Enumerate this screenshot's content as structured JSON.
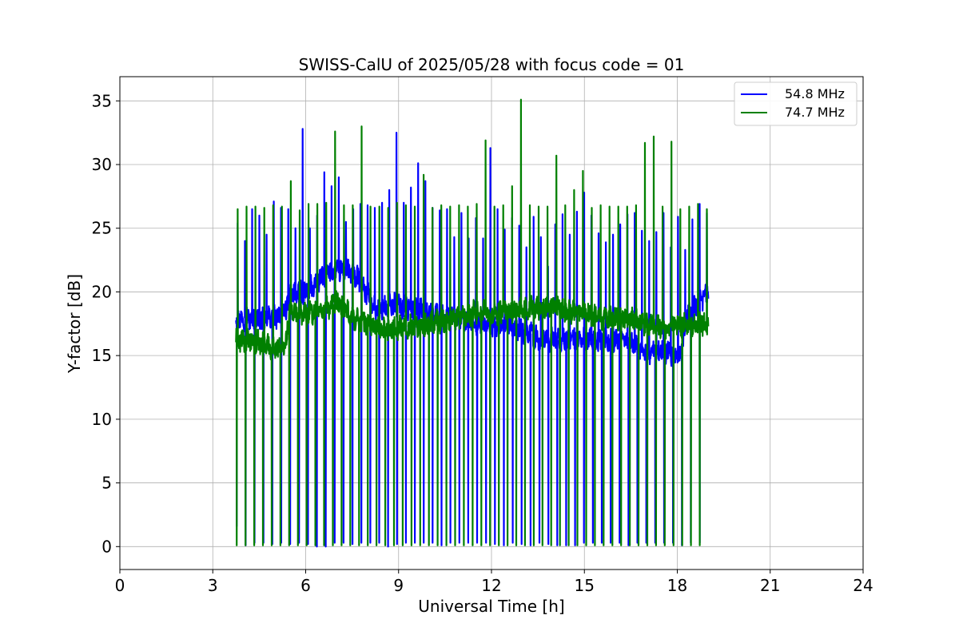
{
  "chart_data": {
    "type": "line",
    "title": "SWISS-CalU of 2025/05/28 with focus code = 01",
    "xlabel": "Universal Time [h]",
    "ylabel": "Y-factor [dB]",
    "xlim": [
      0,
      24
    ],
    "ylim": [
      -1.8,
      36.9
    ],
    "xticks": [
      0,
      3,
      6,
      9,
      12,
      15,
      18,
      21,
      24
    ],
    "xtick_labels": [
      "0",
      "3",
      "6",
      "9",
      "12",
      "15",
      "18",
      "21",
      "24"
    ],
    "yticks": [
      0,
      5,
      10,
      15,
      20,
      25,
      30,
      35
    ],
    "ytick_labels": [
      "0",
      "5",
      "10",
      "15",
      "20",
      "25",
      "30",
      "35"
    ],
    "grid": true,
    "legend_position": "top-right",
    "series": [
      {
        "name": "54.8 MHz",
        "color": "#0000ff",
        "baseline": [
          [
            3.75,
            18.0
          ],
          [
            4.5,
            17.8
          ],
          [
            5.3,
            18.2
          ],
          [
            5.5,
            19.8
          ],
          [
            6.0,
            20.0
          ],
          [
            6.7,
            21.5
          ],
          [
            7.3,
            21.8
          ],
          [
            7.7,
            21.0
          ],
          [
            8.3,
            18.5
          ],
          [
            8.8,
            19.0
          ],
          [
            9.3,
            18.8
          ],
          [
            10.0,
            18.3
          ],
          [
            10.6,
            18.0
          ],
          [
            11.2,
            17.8
          ],
          [
            12.0,
            17.3
          ],
          [
            12.5,
            17.2
          ],
          [
            13.2,
            16.8
          ],
          [
            13.5,
            16.3
          ],
          [
            14.2,
            16.2
          ],
          [
            15.0,
            16.3
          ],
          [
            15.5,
            16.2
          ],
          [
            16.5,
            16.1
          ],
          [
            17.0,
            15.3
          ],
          [
            17.5,
            15.3
          ],
          [
            18.1,
            15.0
          ],
          [
            18.3,
            18.0
          ],
          [
            18.5,
            18.5
          ],
          [
            19.0,
            20.0
          ]
        ],
        "spike_peaks": [
          25.4,
          24.0,
          26.5,
          26.0,
          24.5,
          27.1,
          26.6,
          26.5,
          25.0,
          32.8,
          25.0,
          26.0,
          29.4,
          28.3,
          29.0,
          25.5,
          26.5,
          26.9,
          26.8,
          26.6,
          27.0,
          28.0,
          32.5,
          27.0,
          28.2,
          30.1,
          28.7,
          26.6,
          26.4,
          26.5,
          24.3,
          26.2,
          24.2,
          25.8,
          24.2,
          31.3,
          26.5,
          24.9,
          25.8,
          25.2,
          23.5,
          25.9,
          24.3,
          22.0,
          25.3,
          26.1,
          24.5,
          26.3,
          27.8,
          26.0,
          24.6,
          23.9,
          24.5,
          25.3,
          26.1,
          26.2,
          24.8,
          24.0,
          24.7,
          26.2,
          23.5,
          25.9,
          23.3,
          25.7,
          26.9,
          26.2
        ],
        "dip_values": [
          1.6,
          0.1,
          0.3,
          0.3,
          0.2,
          0.3,
          0.2,
          0.3,
          0.2,
          0.0,
          0.0,
          0.3,
          0.3,
          0.2,
          0.3,
          0.3,
          0.3,
          0.0,
          0.2,
          0.3,
          0.3,
          0.3,
          0.3,
          0.1,
          0.3,
          0.3,
          0.3,
          0.3,
          0.3,
          0.2,
          0.1,
          0.3,
          0.2,
          0.1,
          0.3,
          0.2,
          0.1,
          0.1,
          0.1,
          0.3,
          0.3,
          0.3,
          0.3,
          0.3,
          0.1,
          0.3,
          0.3,
          0.3,
          0.3,
          0.3,
          0.1,
          0.3,
          0.3
        ]
      },
      {
        "name": "74.7 MHz",
        "color": "#008000",
        "baseline": [
          [
            3.75,
            16.2
          ],
          [
            4.5,
            16.0
          ],
          [
            5.0,
            15.6
          ],
          [
            5.3,
            15.6
          ],
          [
            5.5,
            18.5
          ],
          [
            6.0,
            18.3
          ],
          [
            6.5,
            18.5
          ],
          [
            7.0,
            19.2
          ],
          [
            7.5,
            18.0
          ],
          [
            8.0,
            17.5
          ],
          [
            8.5,
            17.0
          ],
          [
            9.0,
            17.2
          ],
          [
            9.5,
            17.3
          ],
          [
            10.0,
            17.4
          ],
          [
            10.5,
            17.8
          ],
          [
            11.0,
            18.0
          ],
          [
            11.5,
            18.5
          ],
          [
            12.0,
            18.3
          ],
          [
            12.5,
            18.4
          ],
          [
            13.0,
            18.6
          ],
          [
            13.5,
            18.8
          ],
          [
            14.0,
            18.7
          ],
          [
            15.0,
            18.3
          ],
          [
            15.5,
            18.0
          ],
          [
            16.0,
            17.9
          ],
          [
            16.5,
            17.9
          ],
          [
            17.0,
            17.5
          ],
          [
            17.5,
            17.3
          ],
          [
            18.0,
            17.3
          ],
          [
            18.5,
            17.5
          ],
          [
            19.0,
            17.5
          ]
        ],
        "spike_peaks": [
          26.5,
          26.7,
          26.7,
          26.6,
          26.8,
          26.7,
          28.7,
          26.4,
          26.9,
          26.9,
          27.0,
          32.6,
          26.8,
          26.8,
          33.0,
          26.7,
          26.7,
          26.6,
          27.0,
          26.8,
          26.7,
          29.2,
          26.6,
          26.8,
          26.7,
          26.8,
          26.7,
          26.9,
          31.9,
          26.7,
          26.8,
          28.3,
          35.1,
          26.8,
          26.7,
          26.7,
          30.7,
          26.8,
          28.0,
          29.5,
          26.6,
          26.8,
          26.7,
          26.7,
          26.7,
          26.8,
          31.7,
          32.2,
          26.7,
          31.8,
          26.5,
          26.7,
          26.9,
          26.5
        ],
        "dip_values": [
          0.1,
          0.1,
          0.1,
          0.1,
          0.1,
          0.1,
          0.1,
          0.1,
          0.1,
          0.1,
          0.1,
          0.1,
          0.1,
          0.1,
          0.1,
          0.1,
          0.1,
          0.1,
          0.1,
          0.1,
          0.1,
          0.1,
          0.1,
          0.1,
          0.1,
          0.1,
          0.1,
          0.1,
          0.1,
          0.1,
          0.1,
          0.1,
          0.1,
          0.1,
          0.1,
          0.1,
          0.1,
          0.1,
          0.1,
          0.1,
          0.1,
          0.1,
          0.1,
          0.1,
          0.1,
          0.1,
          0.1,
          0.1,
          0.1,
          0.1,
          0.1,
          0.1,
          0.1,
          0.1
        ]
      }
    ]
  }
}
